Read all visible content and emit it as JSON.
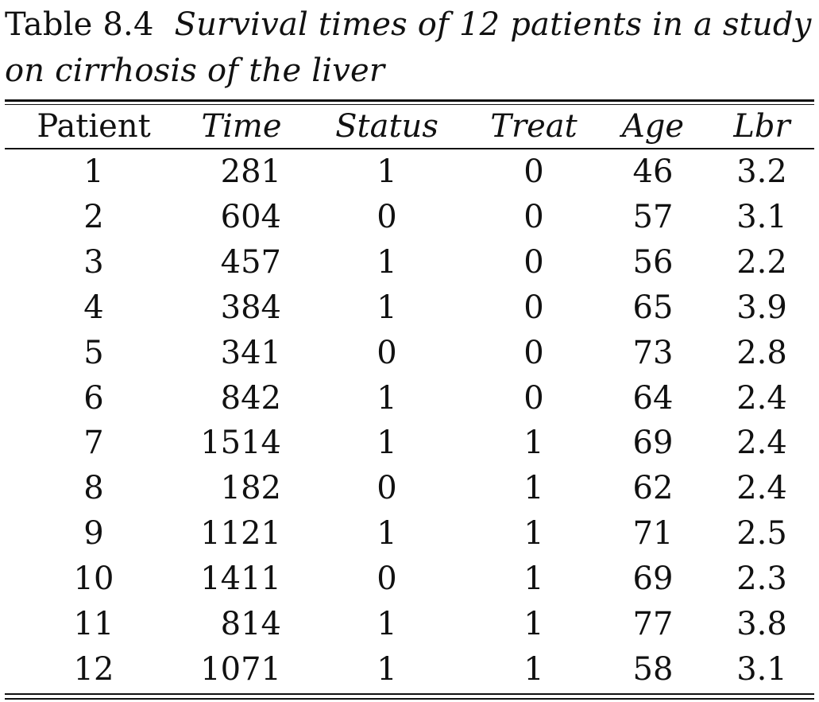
{
  "caption": {
    "label": "Table 8.4",
    "title_line1": "Survival times of 12 patients in a study",
    "title_line2": "on cirrhosis of the liver"
  },
  "table": {
    "headers": [
      "Patient",
      "Time",
      "Status",
      "Treat",
      "Age",
      "Lbr"
    ],
    "rows": [
      [
        "1",
        "281",
        "1",
        "0",
        "46",
        "3.2"
      ],
      [
        "2",
        "604",
        "0",
        "0",
        "57",
        "3.1"
      ],
      [
        "3",
        "457",
        "1",
        "0",
        "56",
        "2.2"
      ],
      [
        "4",
        "384",
        "1",
        "0",
        "65",
        "3.9"
      ],
      [
        "5",
        "341",
        "0",
        "0",
        "73",
        "2.8"
      ],
      [
        "6",
        "842",
        "1",
        "0",
        "64",
        "2.4"
      ],
      [
        "7",
        "1514",
        "1",
        "1",
        "69",
        "2.4"
      ],
      [
        "8",
        "182",
        "0",
        "1",
        "62",
        "2.4"
      ],
      [
        "9",
        "1121",
        "1",
        "1",
        "71",
        "2.5"
      ],
      [
        "10",
        "1411",
        "0",
        "1",
        "69",
        "2.3"
      ],
      [
        "11",
        "814",
        "1",
        "1",
        "77",
        "3.8"
      ],
      [
        "12",
        "1071",
        "1",
        "1",
        "58",
        "3.1"
      ]
    ]
  }
}
